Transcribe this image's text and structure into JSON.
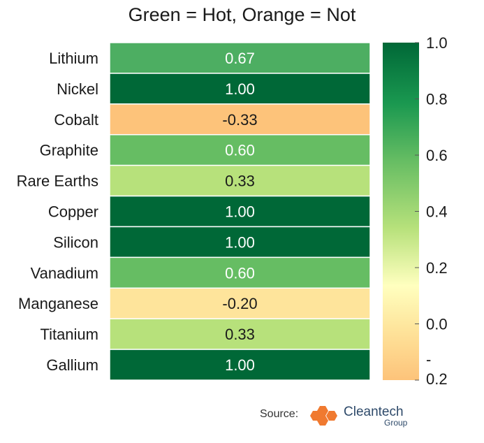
{
  "chart_data": {
    "type": "heatmap",
    "title": "Green = Hot, Orange = Not",
    "categories": [
      "Lithium",
      "Nickel",
      "Cobalt",
      "Graphite",
      "Rare Earths",
      "Copper",
      "Silicon",
      "Vanadium",
      "Manganese",
      "Titanium",
      "Gallium"
    ],
    "values": [
      0.67,
      1.0,
      -0.33,
      0.6,
      0.33,
      1.0,
      1.0,
      0.6,
      -0.2,
      0.33,
      1.0
    ],
    "value_labels": [
      "0.67",
      "1.00",
      "-0.33",
      "0.60",
      "0.33",
      "1.00",
      "1.00",
      "0.60",
      "-0.20",
      "0.33",
      "1.00"
    ],
    "colorbar": {
      "range": [
        -0.2,
        1.0
      ],
      "tick_values": [
        1.0,
        0.8,
        0.6,
        0.4,
        0.2,
        0.0,
        -0.2
      ],
      "tick_labels": [
        "1.0",
        "0.8",
        "0.6",
        "0.4",
        "0.2",
        "0.0",
        "-\n0.2"
      ]
    },
    "colors": {
      "1.00": "#006837",
      "0.67": "#4dae62",
      "0.60": "#66bd63",
      "0.33": "#b7e17b",
      "-0.20": "#fee49b",
      "-0.33": "#fdc37a"
    }
  },
  "footer": {
    "source_label": "Source:",
    "logo_name": "Cleantech",
    "logo_sub": "Group"
  }
}
